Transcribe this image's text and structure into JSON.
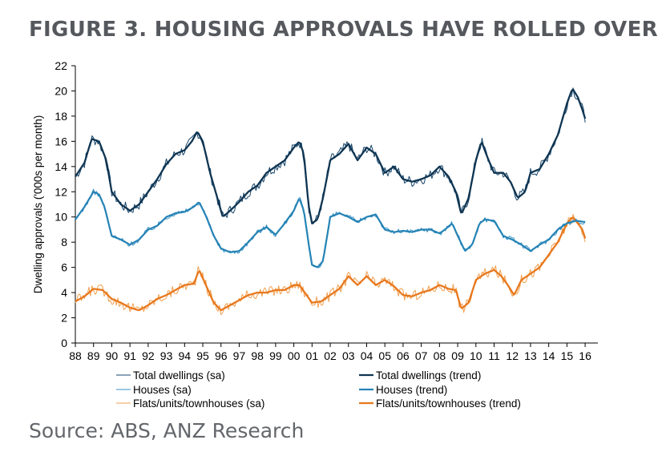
{
  "title": "FIGURE 3. HOUSING APPROVALS HAVE ROLLED OVER",
  "source": "Source: ABS, ANZ Research",
  "chart_data": {
    "type": "line",
    "ylabel": "Dwelling approvals ('000s per month)",
    "xlabel": "",
    "ylim": [
      0,
      22
    ],
    "yticks": [
      0,
      2,
      4,
      6,
      8,
      10,
      12,
      14,
      16,
      18,
      20,
      22
    ],
    "xlim": [
      1988,
      2016.7
    ],
    "xtick_labels": [
      "88",
      "89",
      "90",
      "91",
      "92",
      "93",
      "94",
      "95",
      "96",
      "97",
      "98",
      "99",
      "00",
      "01",
      "02",
      "03",
      "04",
      "05",
      "06",
      "07",
      "08",
      "09",
      "10",
      "11",
      "12",
      "13",
      "14",
      "15",
      "16"
    ],
    "grid": false,
    "legend_position": "bottom",
    "series": [
      {
        "name": "Total dwellings (sa)",
        "color": "#16456b",
        "width": 1,
        "noise": 0.45,
        "x": [
          1988.0,
          1988.5,
          1988.9,
          1989.3,
          1989.7,
          1990.0,
          1990.5,
          1991.0,
          1991.5,
          1992.0,
          1992.5,
          1993.0,
          1993.5,
          1994.0,
          1994.4,
          1994.7,
          1995.0,
          1995.4,
          1995.8,
          1996.1,
          1996.5,
          1997.0,
          1997.5,
          1998.0,
          1998.5,
          1999.0,
          1999.5,
          2000.0,
          2000.3,
          2000.55,
          2000.8,
          2001.0,
          2001.3,
          2001.6,
          2002.0,
          2002.5,
          2003.0,
          2003.5,
          2004.0,
          2004.5,
          2005.0,
          2005.5,
          2006.0,
          2006.5,
          2007.0,
          2007.5,
          2008.0,
          2008.5,
          2008.9,
          2009.2,
          2009.6,
          2010.0,
          2010.3,
          2010.7,
          2011.0,
          2011.5,
          2011.9,
          2012.3,
          2012.7,
          2013.0,
          2013.5,
          2014.0,
          2014.5,
          2015.0,
          2015.3,
          2015.6,
          2015.85,
          2016.0
        ],
        "y": [
          13.2,
          14.3,
          16.2,
          16.0,
          14.5,
          12.0,
          11.0,
          10.5,
          11.0,
          12.0,
          13.0,
          14.2,
          15.0,
          15.3,
          16.0,
          16.8,
          16.0,
          13.5,
          11.5,
          10.0,
          10.5,
          11.2,
          12.0,
          12.5,
          13.5,
          14.0,
          14.5,
          15.5,
          16.0,
          15.0,
          11.0,
          9.5,
          9.8,
          11.5,
          14.5,
          15.0,
          15.8,
          14.5,
          15.5,
          15.0,
          13.5,
          14.0,
          13.0,
          12.8,
          13.0,
          13.3,
          14.0,
          13.2,
          12.0,
          10.2,
          11.5,
          14.5,
          16.0,
          14.5,
          13.5,
          13.5,
          12.8,
          11.5,
          12.0,
          13.5,
          13.8,
          15.0,
          16.5,
          19.0,
          20.2,
          19.5,
          18.5,
          17.8
        ]
      },
      {
        "name": "Total dwellings (trend)",
        "color": "#0f3552",
        "width": 2.3,
        "noise": 0,
        "x": [
          1988.0,
          1988.5,
          1988.9,
          1989.3,
          1989.7,
          1990.0,
          1990.5,
          1991.0,
          1991.5,
          1992.0,
          1992.5,
          1993.0,
          1993.5,
          1994.0,
          1994.4,
          1994.7,
          1995.0,
          1995.4,
          1995.8,
          1996.1,
          1996.5,
          1997.0,
          1997.5,
          1998.0,
          1998.5,
          1999.0,
          1999.5,
          2000.0,
          2000.3,
          2000.55,
          2000.8,
          2001.0,
          2001.3,
          2001.6,
          2002.0,
          2002.5,
          2003.0,
          2003.5,
          2004.0,
          2004.5,
          2005.0,
          2005.5,
          2006.0,
          2006.5,
          2007.0,
          2007.5,
          2008.0,
          2008.5,
          2008.9,
          2009.2,
          2009.6,
          2010.0,
          2010.3,
          2010.7,
          2011.0,
          2011.5,
          2011.9,
          2012.3,
          2012.7,
          2013.0,
          2013.5,
          2014.0,
          2014.5,
          2015.0,
          2015.3,
          2015.6,
          2015.85,
          2016.0
        ],
        "y": [
          13.2,
          14.3,
          16.2,
          16.0,
          14.5,
          12.0,
          11.0,
          10.5,
          11.0,
          12.0,
          13.0,
          14.2,
          15.0,
          15.3,
          16.0,
          16.8,
          16.0,
          13.5,
          11.5,
          10.0,
          10.5,
          11.2,
          12.0,
          12.5,
          13.5,
          14.0,
          14.5,
          15.5,
          16.0,
          15.0,
          11.0,
          9.5,
          9.8,
          11.5,
          14.5,
          15.0,
          15.8,
          14.5,
          15.5,
          15.0,
          13.5,
          14.0,
          13.0,
          12.8,
          13.0,
          13.3,
          14.0,
          13.2,
          12.0,
          10.2,
          11.5,
          14.5,
          16.0,
          14.5,
          13.5,
          13.5,
          12.8,
          11.5,
          12.0,
          13.5,
          13.8,
          15.0,
          16.5,
          19.0,
          20.2,
          19.5,
          18.5,
          17.8
        ]
      },
      {
        "name": "Houses (sa)",
        "color": "#3a92c4",
        "width": 1,
        "noise": 0.2,
        "x": [
          1988.0,
          1988.5,
          1989.0,
          1989.3,
          1989.6,
          1990.0,
          1990.5,
          1991.0,
          1991.5,
          1992.0,
          1992.5,
          1993.0,
          1993.5,
          1994.0,
          1994.5,
          1994.8,
          1995.2,
          1995.6,
          1996.0,
          1996.5,
          1997.0,
          1997.5,
          1998.0,
          1998.5,
          1999.0,
          1999.5,
          2000.0,
          2000.3,
          2000.55,
          2000.8,
          2001.0,
          2001.3,
          2001.6,
          2002.0,
          2002.5,
          2003.0,
          2003.5,
          2004.0,
          2004.5,
          2005.0,
          2005.5,
          2006.0,
          2006.5,
          2007.0,
          2007.5,
          2008.0,
          2008.3,
          2008.7,
          2009.0,
          2009.4,
          2009.8,
          2010.2,
          2010.5,
          2011.0,
          2011.5,
          2012.0,
          2012.5,
          2013.0,
          2013.5,
          2014.0,
          2014.5,
          2015.0,
          2015.5,
          2016.0
        ],
        "y": [
          9.8,
          10.8,
          12.0,
          11.8,
          10.8,
          8.5,
          8.2,
          7.8,
          8.2,
          9.0,
          9.3,
          10.0,
          10.3,
          10.4,
          10.8,
          11.2,
          10.0,
          8.5,
          7.5,
          7.2,
          7.3,
          8.0,
          8.8,
          9.2,
          8.6,
          9.5,
          10.5,
          11.5,
          10.5,
          8.0,
          6.2,
          6.0,
          6.5,
          10.0,
          10.3,
          10.0,
          9.6,
          10.0,
          10.2,
          9.0,
          8.8,
          8.9,
          8.8,
          9.0,
          9.0,
          8.7,
          9.0,
          9.5,
          8.5,
          7.3,
          7.8,
          9.5,
          9.8,
          9.7,
          8.5,
          8.2,
          7.8,
          7.3,
          7.8,
          8.2,
          9.0,
          9.5,
          9.7,
          9.6
        ]
      },
      {
        "name": "Houses (trend)",
        "color": "#2583b5",
        "width": 2.2,
        "noise": 0,
        "x": [
          1988.0,
          1988.5,
          1989.0,
          1989.3,
          1989.6,
          1990.0,
          1990.5,
          1991.0,
          1991.5,
          1992.0,
          1992.5,
          1993.0,
          1993.5,
          1994.0,
          1994.5,
          1994.8,
          1995.2,
          1995.6,
          1996.0,
          1996.5,
          1997.0,
          1997.5,
          1998.0,
          1998.5,
          1999.0,
          1999.5,
          2000.0,
          2000.3,
          2000.55,
          2000.8,
          2001.0,
          2001.3,
          2001.6,
          2002.0,
          2002.5,
          2003.0,
          2003.5,
          2004.0,
          2004.5,
          2005.0,
          2005.5,
          2006.0,
          2006.5,
          2007.0,
          2007.5,
          2008.0,
          2008.3,
          2008.7,
          2009.0,
          2009.4,
          2009.8,
          2010.2,
          2010.5,
          2011.0,
          2011.5,
          2012.0,
          2012.5,
          2013.0,
          2013.5,
          2014.0,
          2014.5,
          2015.0,
          2015.5,
          2016.0
        ],
        "y": [
          9.8,
          10.8,
          12.0,
          11.8,
          10.8,
          8.5,
          8.2,
          7.8,
          8.2,
          9.0,
          9.3,
          10.0,
          10.3,
          10.4,
          10.8,
          11.2,
          10.0,
          8.5,
          7.5,
          7.2,
          7.3,
          8.0,
          8.8,
          9.2,
          8.6,
          9.5,
          10.5,
          11.5,
          10.5,
          8.0,
          6.2,
          6.0,
          6.5,
          10.0,
          10.3,
          10.0,
          9.6,
          10.0,
          10.2,
          9.0,
          8.8,
          8.9,
          8.8,
          9.0,
          9.0,
          8.7,
          9.0,
          9.5,
          8.5,
          7.3,
          7.8,
          9.5,
          9.8,
          9.7,
          8.5,
          8.2,
          7.8,
          7.3,
          7.8,
          8.2,
          9.0,
          9.5,
          9.7,
          9.6
        ]
      },
      {
        "name": "Flats/units/townhouses (sa)",
        "color": "#f0a050",
        "width": 1,
        "noise": 0.45,
        "x": [
          1988.0,
          1988.5,
          1989.0,
          1989.5,
          1990.0,
          1990.5,
          1991.0,
          1991.5,
          1992.0,
          1992.5,
          1993.0,
          1993.5,
          1994.0,
          1994.5,
          1994.8,
          1995.2,
          1995.6,
          1996.0,
          1996.5,
          1997.0,
          1997.5,
          1998.0,
          1998.5,
          1999.0,
          1999.5,
          2000.0,
          2000.3,
          2000.6,
          2001.0,
          2001.5,
          2002.0,
          2002.5,
          2003.0,
          2003.5,
          2004.0,
          2004.5,
          2005.0,
          2005.5,
          2006.0,
          2006.5,
          2007.0,
          2007.5,
          2008.0,
          2008.5,
          2008.9,
          2009.2,
          2009.6,
          2010.0,
          2010.5,
          2011.0,
          2011.4,
          2011.8,
          2012.1,
          2012.5,
          2013.0,
          2013.5,
          2014.0,
          2014.5,
          2015.0,
          2015.3,
          2015.6,
          2015.85,
          2016.0
        ],
        "y": [
          3.3,
          3.7,
          4.3,
          4.2,
          3.5,
          3.2,
          2.8,
          2.6,
          3.0,
          3.5,
          3.8,
          4.2,
          4.6,
          4.7,
          5.8,
          4.5,
          3.2,
          2.6,
          3.0,
          3.4,
          3.8,
          4.0,
          4.0,
          4.2,
          4.2,
          4.6,
          4.6,
          4.0,
          3.2,
          3.3,
          3.8,
          4.3,
          5.3,
          4.6,
          5.3,
          4.6,
          5.0,
          4.5,
          3.8,
          3.7,
          4.0,
          4.2,
          4.6,
          4.3,
          4.2,
          2.7,
          3.2,
          5.0,
          5.5,
          5.8,
          5.3,
          4.5,
          3.8,
          5.0,
          5.5,
          6.0,
          7.0,
          8.0,
          9.5,
          10.0,
          9.5,
          9.0,
          8.3
        ]
      },
      {
        "name": "Flats/units/townhouses (trend)",
        "color": "#e8781e",
        "width": 2.3,
        "noise": 0,
        "x": [
          1988.0,
          1988.5,
          1989.0,
          1989.5,
          1990.0,
          1990.5,
          1991.0,
          1991.5,
          1992.0,
          1992.5,
          1993.0,
          1993.5,
          1994.0,
          1994.5,
          1994.8,
          1995.2,
          1995.6,
          1996.0,
          1996.5,
          1997.0,
          1997.5,
          1998.0,
          1998.5,
          1999.0,
          1999.5,
          2000.0,
          2000.3,
          2000.6,
          2001.0,
          2001.5,
          2002.0,
          2002.5,
          2003.0,
          2003.5,
          2004.0,
          2004.5,
          2005.0,
          2005.5,
          2006.0,
          2006.5,
          2007.0,
          2007.5,
          2008.0,
          2008.5,
          2008.9,
          2009.2,
          2009.6,
          2010.0,
          2010.5,
          2011.0,
          2011.4,
          2011.8,
          2012.1,
          2012.5,
          2013.0,
          2013.5,
          2014.0,
          2014.5,
          2015.0,
          2015.3,
          2015.6,
          2015.85,
          2016.0
        ],
        "y": [
          3.3,
          3.7,
          4.3,
          4.2,
          3.5,
          3.2,
          2.8,
          2.6,
          3.0,
          3.5,
          3.8,
          4.2,
          4.6,
          4.7,
          5.8,
          4.5,
          3.2,
          2.6,
          3.0,
          3.4,
          3.8,
          4.0,
          4.0,
          4.2,
          4.2,
          4.6,
          4.6,
          4.0,
          3.2,
          3.3,
          3.8,
          4.3,
          5.3,
          4.6,
          5.3,
          4.6,
          5.0,
          4.5,
          3.8,
          3.7,
          4.0,
          4.2,
          4.6,
          4.3,
          4.2,
          2.7,
          3.2,
          5.0,
          5.5,
          5.8,
          5.3,
          4.5,
          3.8,
          5.0,
          5.5,
          6.0,
          7.0,
          8.0,
          9.5,
          10.0,
          9.5,
          9.0,
          8.3
        ]
      }
    ]
  }
}
